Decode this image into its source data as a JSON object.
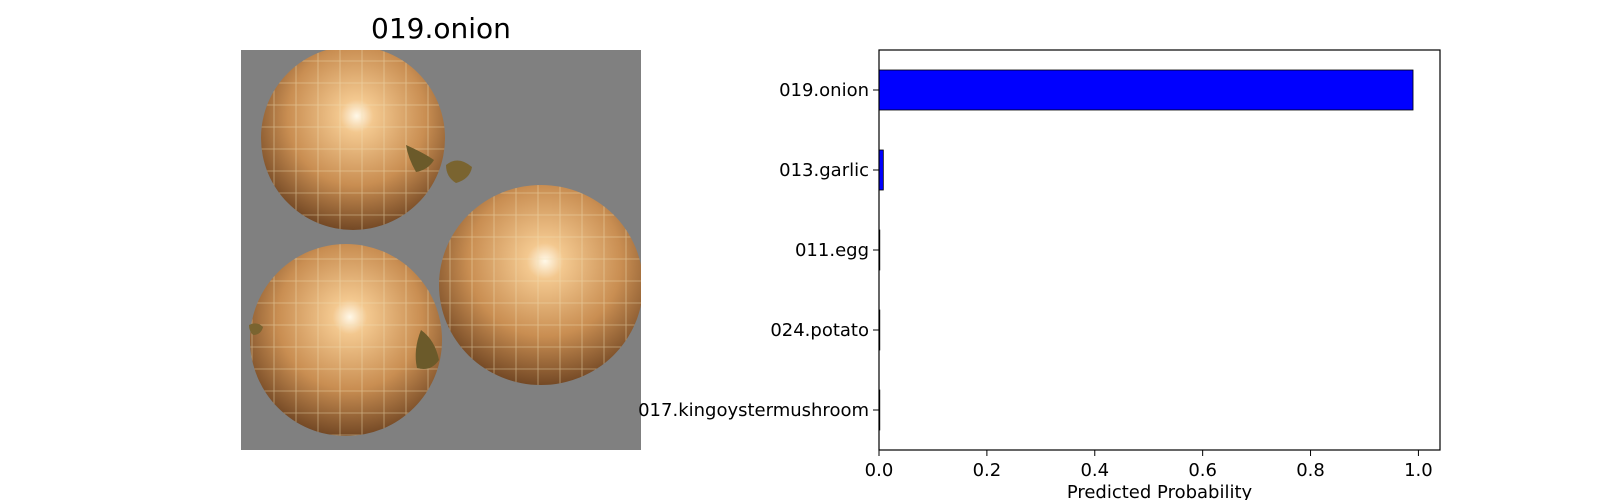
{
  "image_panel": {
    "title": "019.onion"
  },
  "chart_data": {
    "type": "bar",
    "orientation": "horizontal",
    "categories": [
      "019.onion",
      "013.garlic",
      "011.egg",
      "024.potato",
      "017.kingoystermushroom"
    ],
    "values": [
      0.99,
      0.008,
      0.001,
      0.0008,
      0.0005
    ],
    "title": "",
    "xlabel": "Predicted Probability",
    "ylabel": "",
    "xlim": [
      0,
      1.04
    ],
    "xticks": [
      0.0,
      0.2,
      0.4,
      0.6,
      0.8,
      1.0
    ],
    "xtick_labels": [
      "0.0",
      "0.2",
      "0.4",
      "0.6",
      "0.8",
      "1.0"
    ],
    "bar_color": "#0000ff",
    "edge_color": "#000000",
    "grid": false,
    "legend": "none"
  }
}
